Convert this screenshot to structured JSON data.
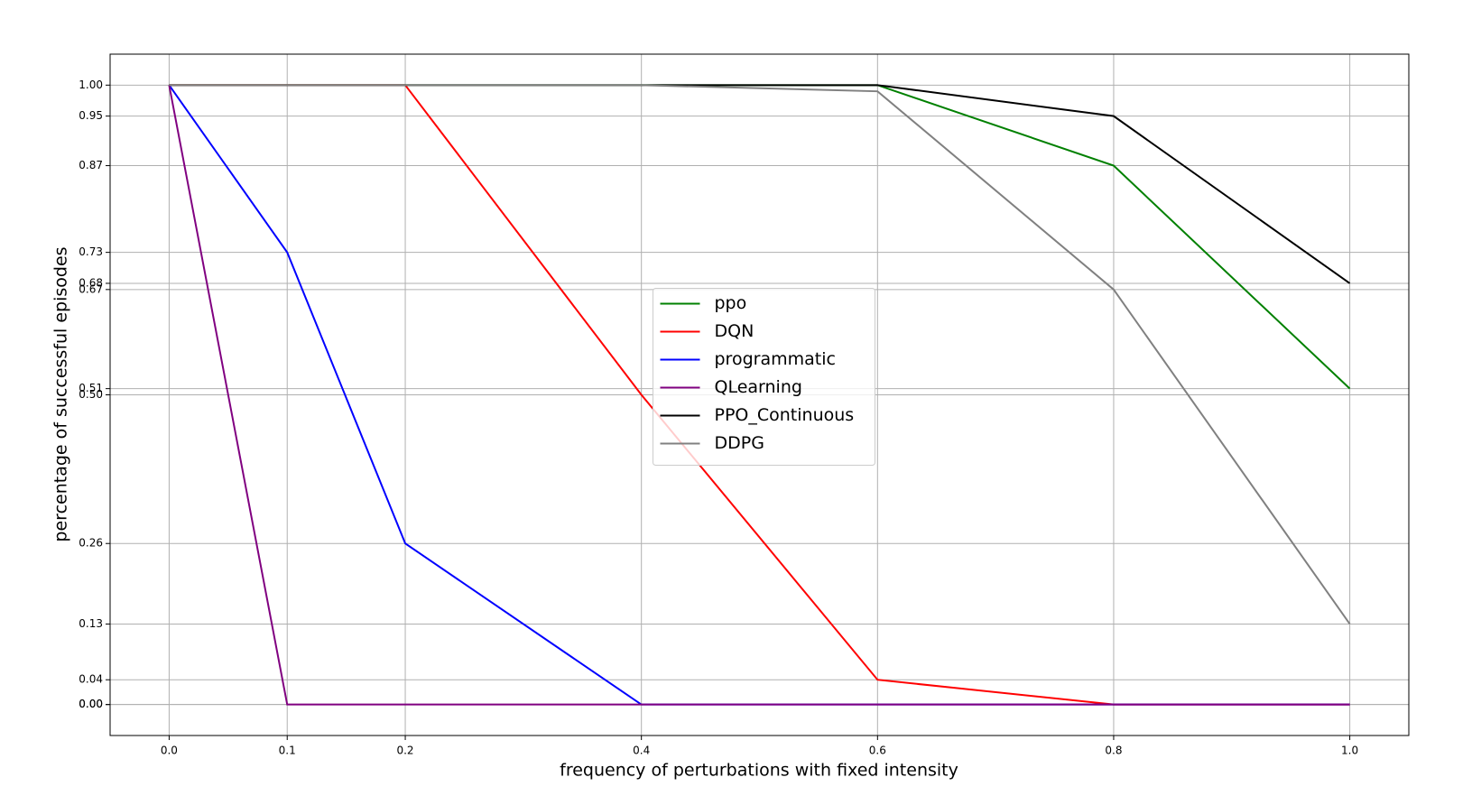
{
  "chart_data": {
    "type": "line",
    "x_label": "frequency of perturbations with fixed intensity",
    "y_label": "percentage of successful episodes",
    "x": [
      0.0,
      0.1,
      0.2,
      0.4,
      0.6,
      0.8,
      1.0
    ],
    "series": [
      {
        "name": "ppo",
        "color": "#008000",
        "values": [
          1,
          1,
          1,
          1,
          1,
          0.87,
          0.51
        ]
      },
      {
        "name": "DQN",
        "color": "#ff0000",
        "values": [
          1,
          1,
          1,
          0.5,
          0.04,
          0,
          0
        ]
      },
      {
        "name": "programmatic",
        "color": "#0000ff",
        "values": [
          1,
          0.73,
          0.26,
          0,
          0,
          0,
          0
        ]
      },
      {
        "name": "QLearning",
        "color": "#800080",
        "values": [
          1,
          0,
          0,
          0,
          0,
          0,
          0
        ]
      },
      {
        "name": "PPO_Continuous",
        "color": "#000000",
        "values": [
          1,
          1,
          1,
          1,
          1,
          0.95,
          0.68
        ]
      },
      {
        "name": "DDPG",
        "color": "#808080",
        "values": [
          1,
          1,
          1,
          1,
          0.99,
          0.67,
          0.13
        ]
      }
    ],
    "xlim": [
      -0.05,
      1.05
    ],
    "ylim": [
      -0.05,
      1.05
    ],
    "xticks": [
      {
        "value": 0,
        "label": "0.0"
      },
      0.1,
      0.2,
      0.4,
      0.6,
      0.8,
      {
        "value": 1,
        "label": "1.0"
      }
    ],
    "yticks": [
      {
        "value": 0,
        "label": "0.00"
      },
      {
        "value": 0,
        "label": "0.00"
      },
      0.04,
      0.13,
      0.26,
      {
        "value": 0.5,
        "label": "0.50"
      },
      0.51,
      0.67,
      0.68,
      0.73,
      0.87,
      0.95,
      {
        "value": 1,
        "label": "1.00"
      }
    ],
    "grid": true,
    "legend": "center"
  }
}
